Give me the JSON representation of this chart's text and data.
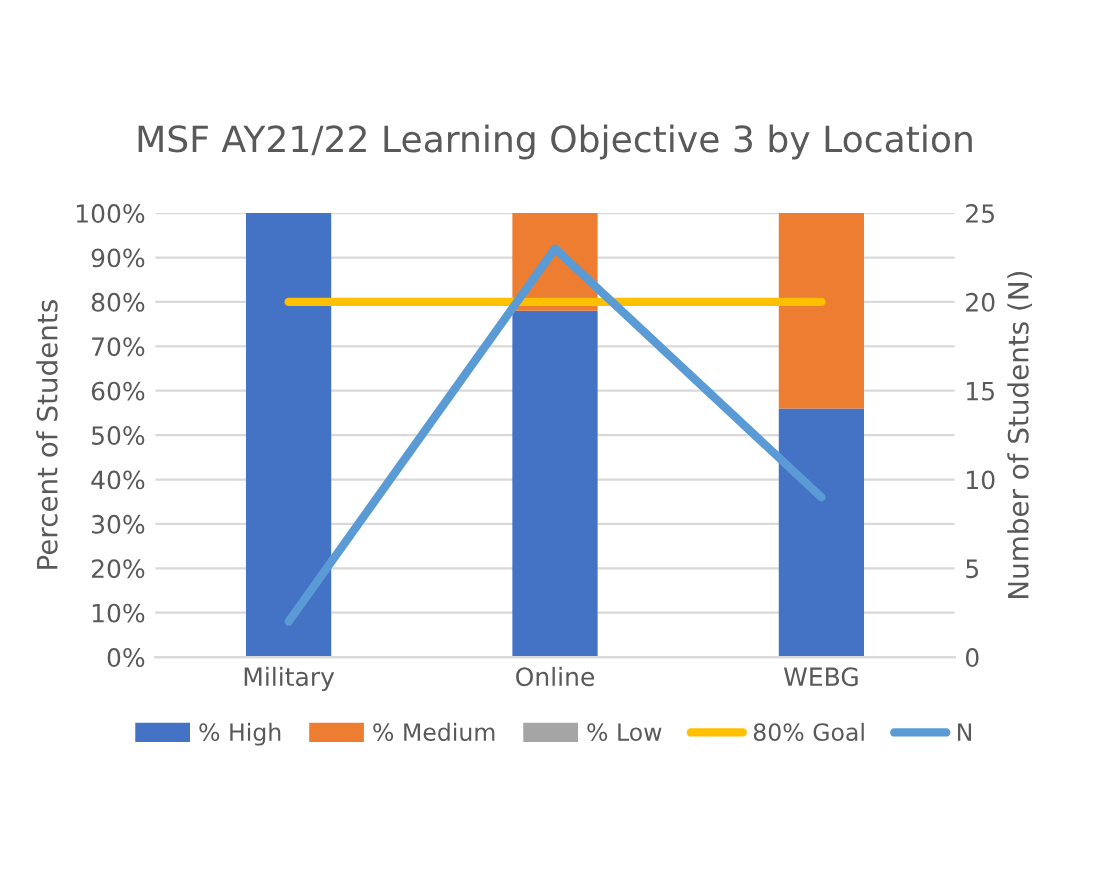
{
  "chart_data": {
    "type": "bar",
    "title": "MSF AY21/22 Learning Objective 3 by Location",
    "ylabel": "Percent of Students",
    "y2label": "Number of Students (N)",
    "categories": [
      "Military",
      "Online",
      "WEBG"
    ],
    "stacked": true,
    "series": [
      {
        "name": "% High",
        "color": "#4472c4",
        "values": [
          100,
          78,
          56
        ]
      },
      {
        "name": "% Medium",
        "color": "#ed7d31",
        "values": [
          0,
          22,
          44
        ]
      },
      {
        "name": "% Low",
        "color": "#a5a5a5",
        "values": [
          0,
          0,
          0
        ]
      },
      {
        "name": "80% Goal",
        "type": "line",
        "color": "#ffc000",
        "values": [
          80,
          80,
          80
        ]
      },
      {
        "name": "N",
        "type": "line",
        "axis": "y2",
        "color": "#5b9bd5",
        "values": [
          2,
          23,
          9
        ]
      }
    ],
    "ylim": [
      0,
      100
    ],
    "yticks": [
      {
        "value": 0,
        "label": "0%"
      },
      {
        "value": 10,
        "label": "10%"
      },
      {
        "value": 20,
        "label": "20%"
      },
      {
        "value": 30,
        "label": "30%"
      },
      {
        "value": 40,
        "label": "40%"
      },
      {
        "value": 50,
        "label": "50%"
      },
      {
        "value": 60,
        "label": "60%"
      },
      {
        "value": 70,
        "label": "70%"
      },
      {
        "value": 80,
        "label": "80%"
      },
      {
        "value": 90,
        "label": "90%"
      },
      {
        "value": 100,
        "label": "100%"
      }
    ],
    "y2lim": [
      0,
      25
    ],
    "y2ticks": [
      0,
      5,
      10,
      15,
      20,
      25
    ],
    "grid": "y",
    "legend": "bottom"
  }
}
